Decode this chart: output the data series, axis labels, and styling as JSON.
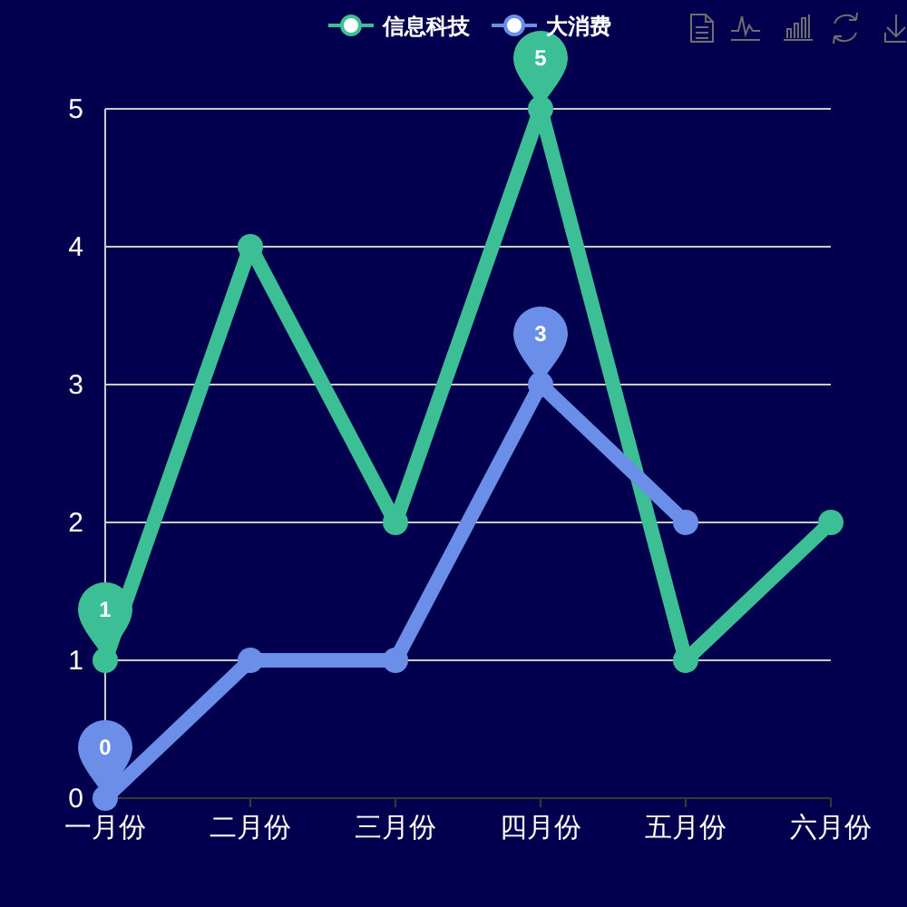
{
  "chart_data": {
    "type": "line",
    "categories": [
      "一月份",
      "二月份",
      "三月份",
      "四月份",
      "五月份",
      "六月份"
    ],
    "series": [
      {
        "name": "信息科技",
        "color": "#3dbf96",
        "values": [
          1,
          4,
          2,
          5,
          1,
          2
        ]
      },
      {
        "name": "大消费",
        "color": "#6b8fe8",
        "values": [
          0,
          1,
          1,
          3,
          2,
          null
        ]
      }
    ],
    "ylim": [
      0,
      5
    ],
    "yticks": [
      0,
      1,
      2,
      3,
      4,
      5
    ],
    "grid": "y",
    "legend": "top",
    "marker": "circle",
    "line_style": "solid",
    "annotations": [
      {
        "text": "1",
        "x": "一月份",
        "y": 1
      },
      {
        "text": "5",
        "x": "四月份",
        "y": 5
      },
      {
        "text": "0",
        "x": "一月份",
        "y": 0
      },
      {
        "text": "3",
        "x": "四月份",
        "y": 3
      }
    ]
  }
}
